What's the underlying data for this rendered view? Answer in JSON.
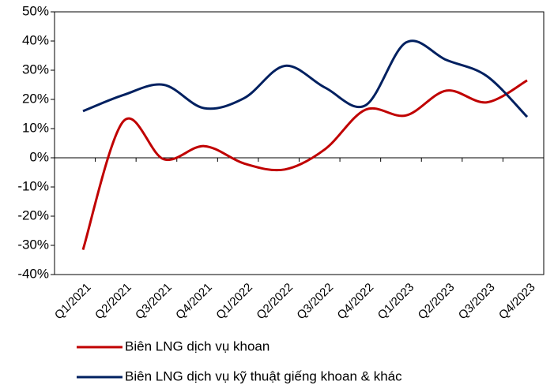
{
  "chart_data": {
    "type": "line",
    "categories": [
      "Q1/2021",
      "Q2/2021",
      "Q3/2021",
      "Q4/2021",
      "Q1/2022",
      "Q2/2022",
      "Q3/2022",
      "Q4/2022",
      "Q1/2023",
      "Q2/2023",
      "Q3/2023",
      "Q4/2023"
    ],
    "series": [
      {
        "name": "Biên LNG dịch vụ khoan",
        "color": "#c00000",
        "values": [
          -31.5,
          12.5,
          -0.5,
          4,
          -2,
          -4,
          3,
          16.5,
          14.5,
          23,
          19,
          26.5
        ]
      },
      {
        "name": "Biên LNG dịch vụ kỹ thuật giếng khoan & khác",
        "color": "#002060",
        "values": [
          16,
          21.5,
          25,
          17,
          20.5,
          31.5,
          24,
          18,
          39.5,
          33.5,
          28,
          14
        ]
      }
    ],
    "ylim": [
      -40,
      50
    ],
    "yticks": [
      {
        "value": -40,
        "label": "-40%"
      },
      {
        "value": -30,
        "label": "-30%"
      },
      {
        "value": -20,
        "label": "-20%"
      },
      {
        "value": -10,
        "label": "-10%"
      },
      {
        "value": 0,
        "label": "0%"
      },
      {
        "value": 10,
        "label": "10%"
      },
      {
        "value": 20,
        "label": "20%"
      },
      {
        "value": 30,
        "label": "30%"
      },
      {
        "value": 40,
        "label": "40%"
      },
      {
        "value": 50,
        "label": "50%"
      }
    ],
    "grid": false,
    "smooth": true
  }
}
